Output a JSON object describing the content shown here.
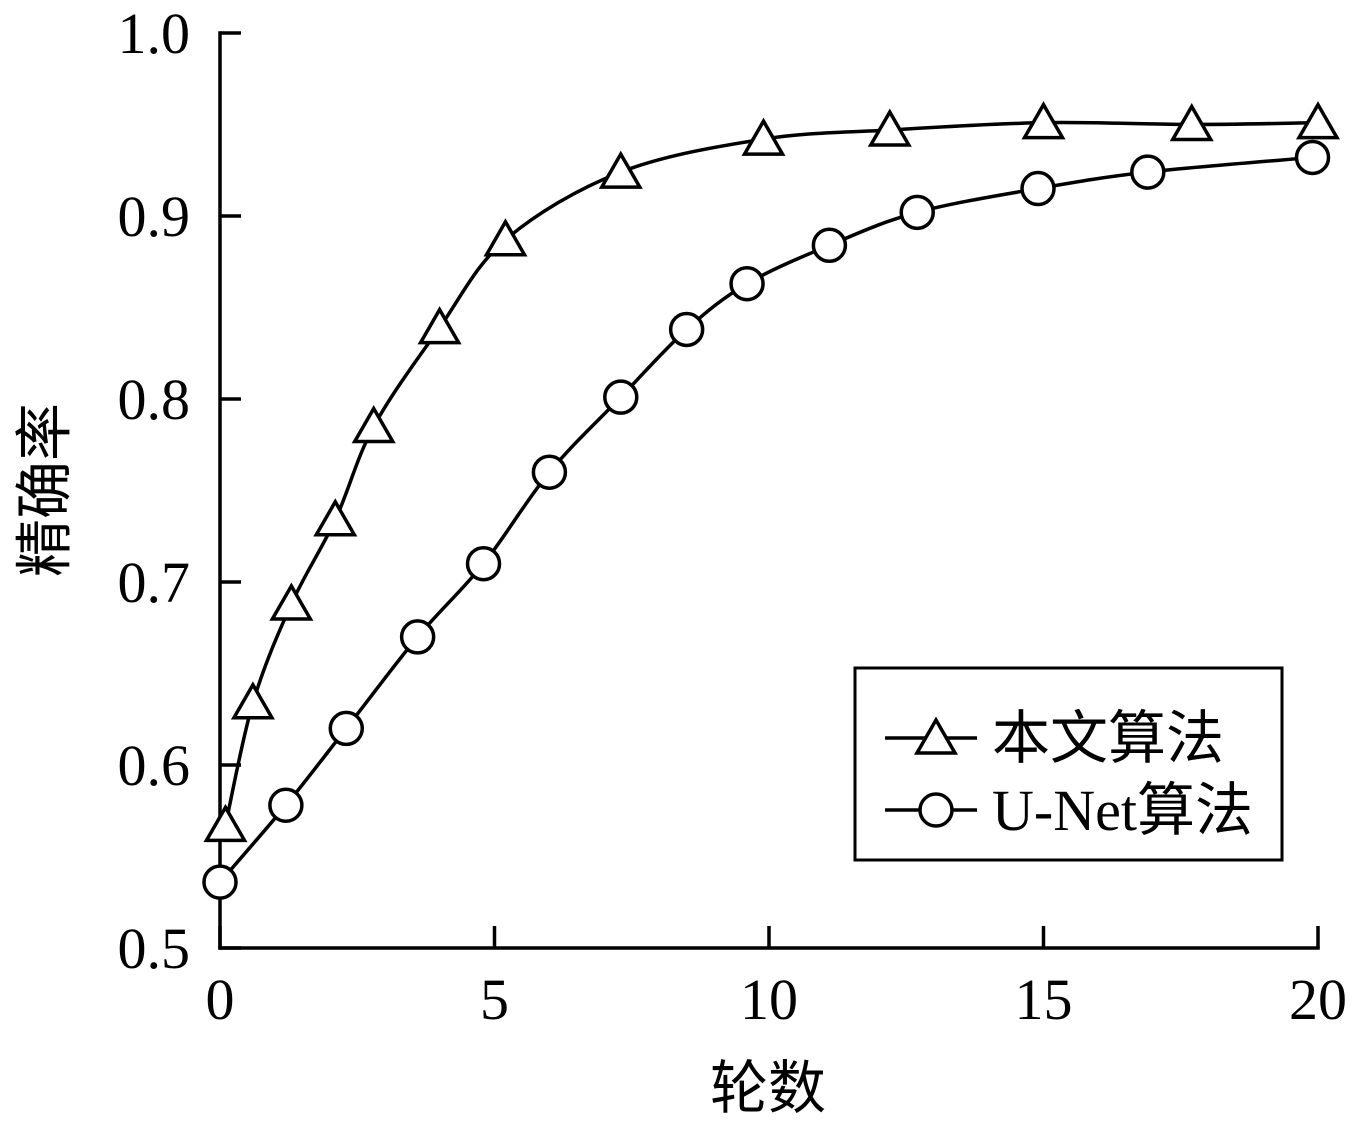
{
  "chart_data": {
    "type": "line",
    "xlabel": "轮数",
    "ylabel": "精确率",
    "xlim": [
      0,
      20
    ],
    "ylim": [
      0.5,
      1.0
    ],
    "xticks": [
      "0",
      "5",
      "10",
      "15",
      "20"
    ],
    "yticks": [
      "0.5",
      "0.6",
      "0.7",
      "0.8",
      "0.9",
      "1.0"
    ],
    "grid": false,
    "legend_position": "lower-right",
    "series": [
      {
        "name": "本文算法",
        "marker": "triangle",
        "color": "#000000",
        "x": [
          0.1,
          0.6,
          1.3,
          2.1,
          2.8,
          4.0,
          5.2,
          7.3,
          9.9,
          12.2,
          15.0,
          17.7,
          20.0
        ],
        "y": [
          0.567,
          0.634,
          0.688,
          0.734,
          0.785,
          0.839,
          0.887,
          0.924,
          0.942,
          0.947,
          0.951,
          0.95,
          0.951
        ]
      },
      {
        "name": "U-Net算法",
        "marker": "circle",
        "color": "#000000",
        "x": [
          0.0,
          1.2,
          2.3,
          3.6,
          4.8,
          6.0,
          7.3,
          8.5,
          9.6,
          11.1,
          12.7,
          14.9,
          16.9,
          19.9
        ],
        "y": [
          0.536,
          0.578,
          0.62,
          0.67,
          0.71,
          0.76,
          0.801,
          0.838,
          0.863,
          0.884,
          0.902,
          0.915,
          0.924,
          0.932
        ]
      }
    ]
  }
}
